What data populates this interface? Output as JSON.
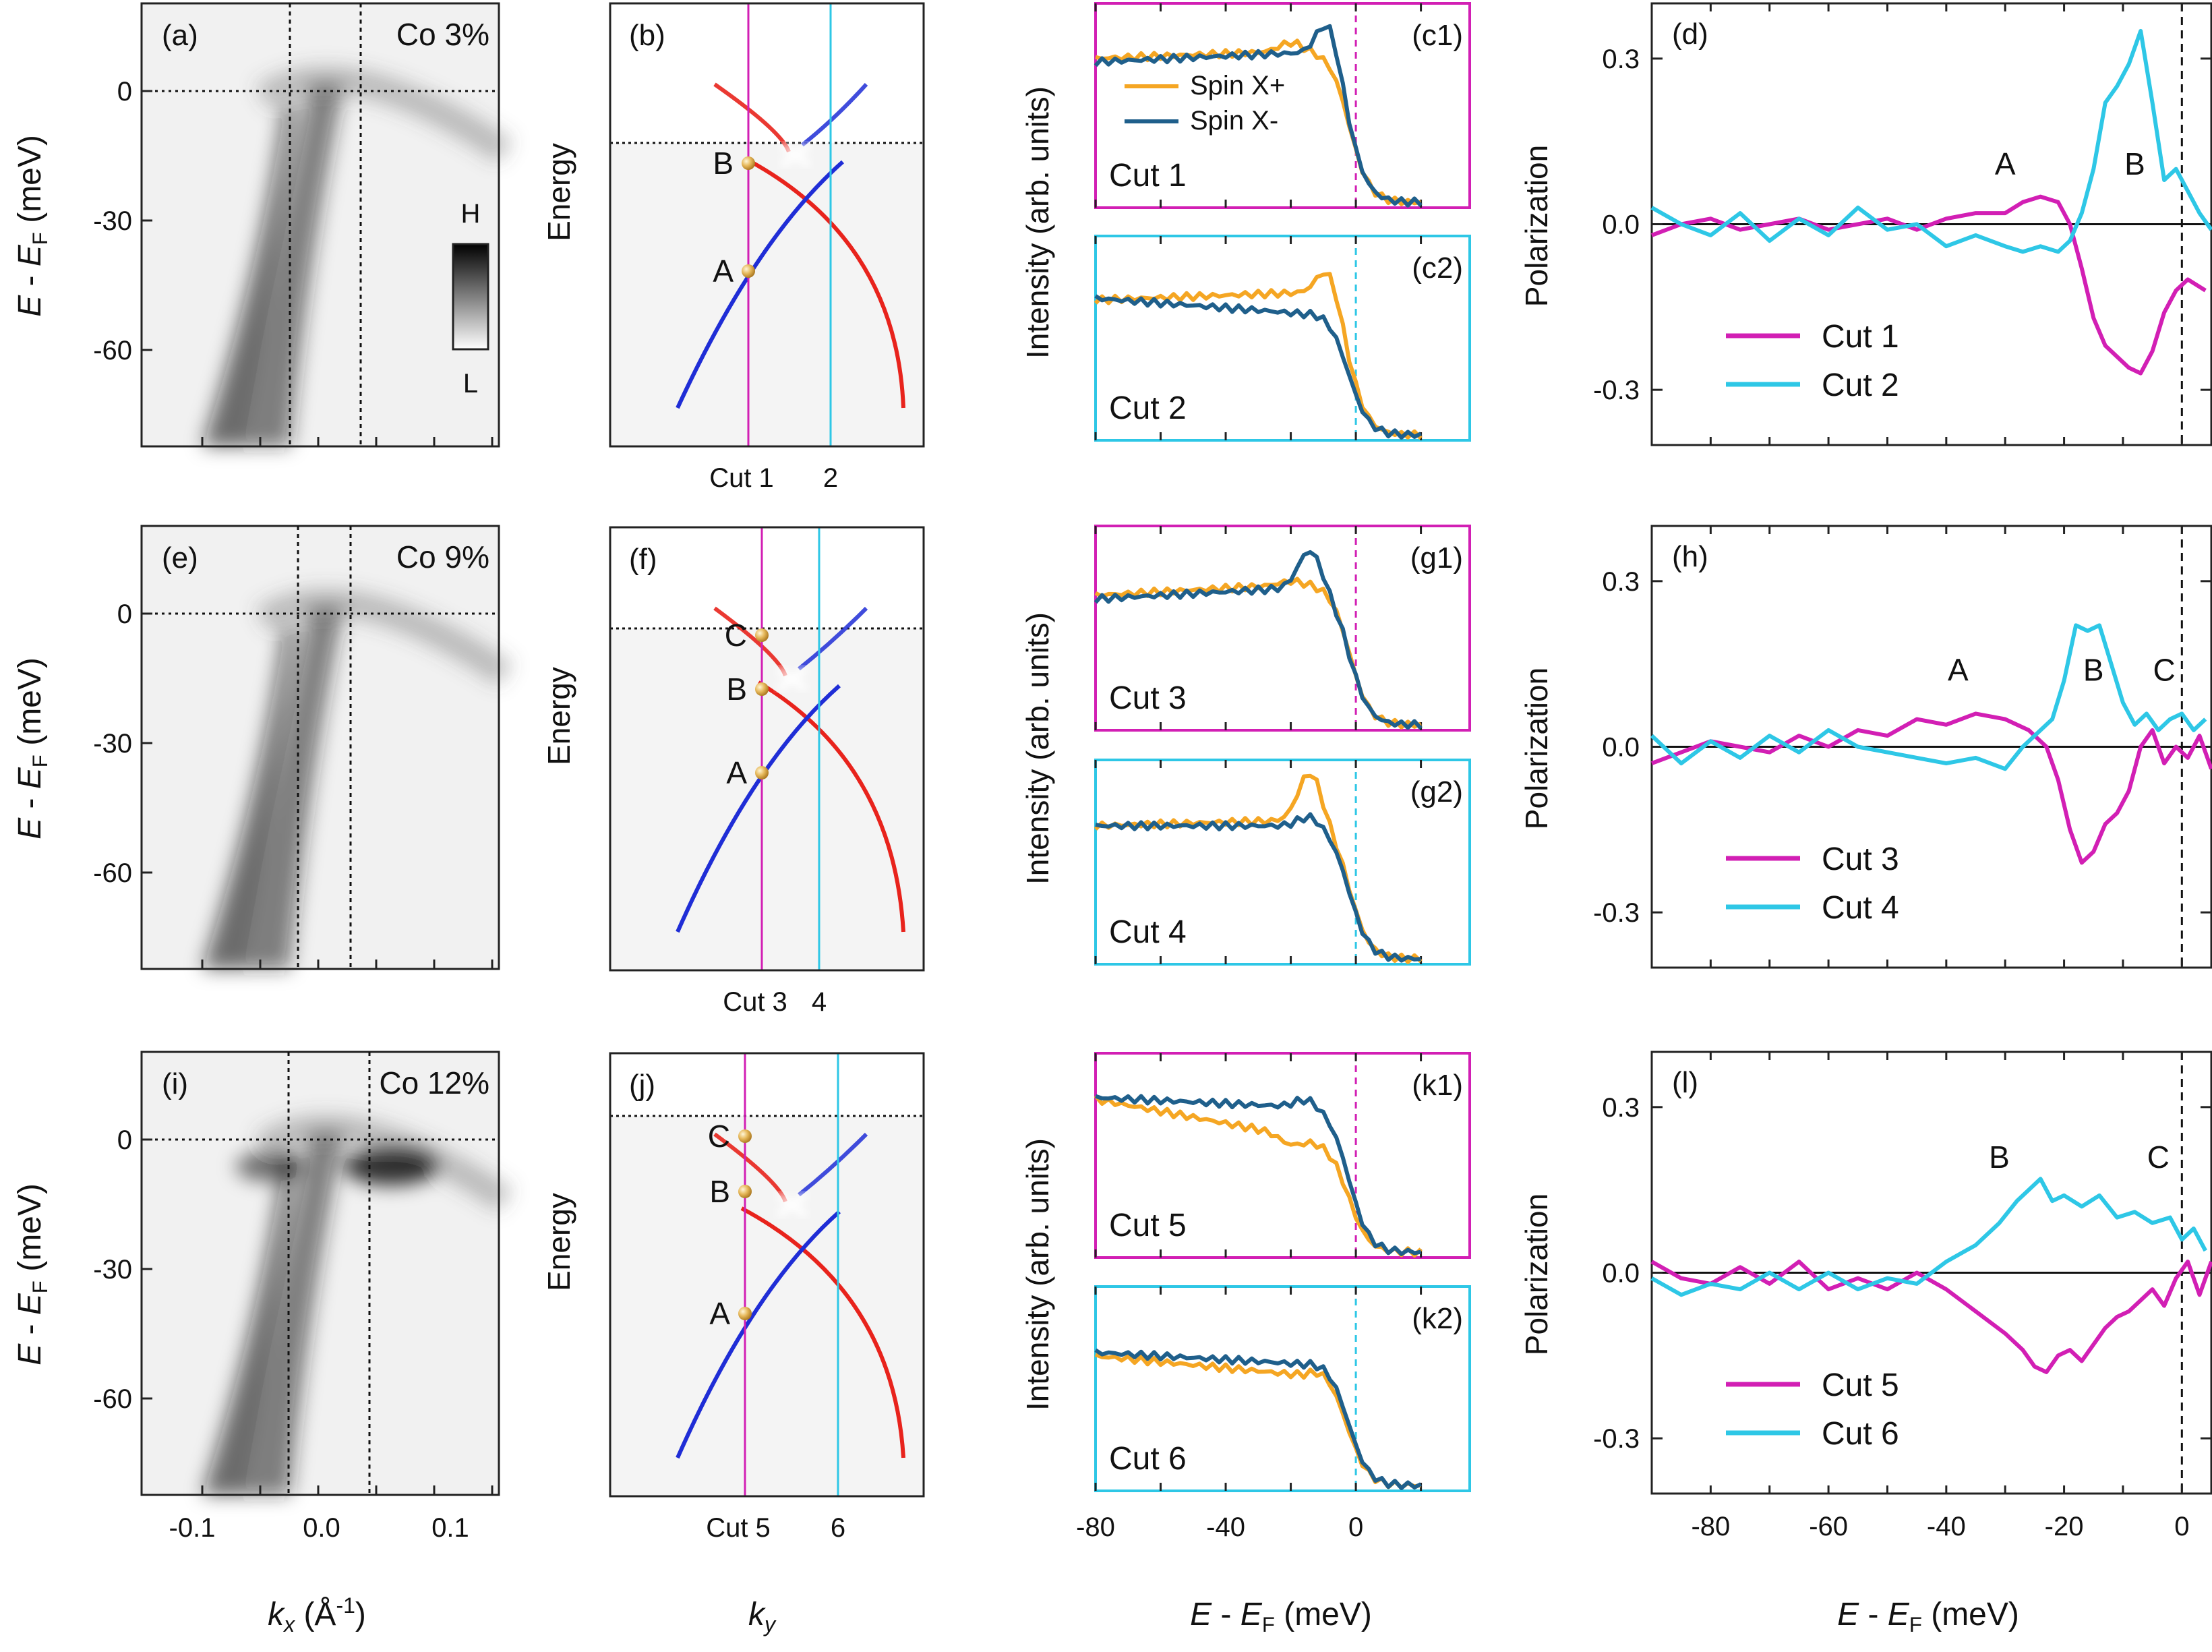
{
  "colors": {
    "magenta": "#D21FB4",
    "cyan": "#2EC7E6",
    "orange": "#F5A623",
    "darkblue": "#1F5F8B",
    "red": "#E8231C",
    "blue": "#1F2DD6",
    "gridgray": "#f4f4f4"
  },
  "chart_data": [
    {
      "type": "heatmap",
      "panel": "(a)",
      "label": "Co 3%",
      "ylabel": "E - E_F (meV)",
      "yticks": [
        "0",
        "-30",
        "-60"
      ],
      "colorbar": {
        "high": "H",
        "low": "L"
      }
    },
    {
      "type": "heatmap",
      "panel": "(e)",
      "label": "Co 9%",
      "ylabel": "E - E_F (meV)",
      "yticks": [
        "0",
        "-30",
        "-60"
      ]
    },
    {
      "type": "heatmap",
      "panel": "(i)",
      "label": "Co 12%",
      "ylabel": "E - E_F (meV)",
      "yticks": [
        "0",
        "-30",
        "-60"
      ],
      "xlabel": "k_x (Å^-1)",
      "xticks": [
        "-0.1",
        "0.0",
        "0.1"
      ]
    },
    {
      "type": "diagram",
      "panel": "(b)",
      "ylabel": "Energy",
      "points": [
        "B",
        "A"
      ],
      "cut_labels": [
        "Cut 1",
        "2"
      ]
    },
    {
      "type": "diagram",
      "panel": "(f)",
      "ylabel": "Energy",
      "points": [
        "C",
        "B",
        "A"
      ],
      "cut_labels": [
        "Cut 3",
        "4"
      ]
    },
    {
      "type": "diagram",
      "panel": "(j)",
      "ylabel": "Energy",
      "points": [
        "C",
        "B",
        "A"
      ],
      "cut_labels": [
        "Cut 5",
        "6"
      ],
      "xlabel": "k_y"
    },
    {
      "type": "line",
      "ylabel": "Intensity (arb. units)",
      "xlabel": "E - E_F (meV)",
      "xticks": [
        "-80",
        "-40",
        "0"
      ],
      "legend": [
        "Spin X+",
        "Spin X-"
      ],
      "panels": [
        {
          "tag": "(c1)",
          "cut": "Cut 1"
        },
        {
          "tag": "(c2)",
          "cut": "Cut 2"
        },
        {
          "tag": "(g1)",
          "cut": "Cut 3"
        },
        {
          "tag": "(g2)",
          "cut": "Cut 4"
        },
        {
          "tag": "(k1)",
          "cut": "Cut 5"
        },
        {
          "tag": "(k2)",
          "cut": "Cut 6"
        }
      ]
    },
    {
      "type": "line",
      "panel": "(d)",
      "ylabel": "Polarization",
      "yticks": [
        "0.3",
        "0.0",
        "-0.3"
      ],
      "ylim": [
        -0.4,
        0.4
      ],
      "xlim": [
        -90,
        5
      ],
      "annotations": [
        {
          "text": "A",
          "x": -30,
          "y": 0.09
        },
        {
          "text": "B",
          "x": -8,
          "y": 0.09
        }
      ],
      "series": [
        {
          "name": "Cut 1",
          "color": "magenta",
          "x": [
            -90,
            -85,
            -80,
            -75,
            -70,
            -65,
            -60,
            -55,
            -50,
            -45,
            -40,
            -35,
            -30,
            -27,
            -24,
            -21,
            -19,
            -17,
            -15,
            -13,
            -11,
            -9,
            -7,
            -5,
            -3,
            -1,
            1,
            4
          ],
          "y": [
            -0.02,
            0.0,
            0.01,
            -0.01,
            0.0,
            0.01,
            -0.01,
            0.0,
            0.01,
            -0.01,
            0.01,
            0.02,
            0.02,
            0.04,
            0.05,
            0.04,
            0.0,
            -0.08,
            -0.17,
            -0.22,
            -0.24,
            -0.26,
            -0.27,
            -0.23,
            -0.16,
            -0.12,
            -0.1,
            -0.12
          ]
        },
        {
          "name": "Cut 2",
          "color": "cyan",
          "x": [
            -90,
            -85,
            -80,
            -75,
            -70,
            -65,
            -60,
            -55,
            -50,
            -45,
            -40,
            -35,
            -30,
            -27,
            -24,
            -21,
            -19,
            -17,
            -15,
            -13,
            -11,
            -9,
            -7,
            -5,
            -3,
            -1,
            1,
            3,
            5
          ],
          "y": [
            0.03,
            0.0,
            -0.02,
            0.02,
            -0.03,
            0.01,
            -0.02,
            0.03,
            -0.01,
            0.0,
            -0.04,
            -0.02,
            -0.04,
            -0.05,
            -0.04,
            -0.05,
            -0.03,
            0.02,
            0.1,
            0.22,
            0.25,
            0.29,
            0.35,
            0.22,
            0.08,
            0.1,
            0.06,
            0.02,
            -0.01
          ]
        }
      ],
      "legend": [
        "Cut 1",
        "Cut 2"
      ]
    },
    {
      "type": "line",
      "panel": "(h)",
      "ylabel": "Polarization",
      "yticks": [
        "0.3",
        "0.0",
        "-0.3"
      ],
      "ylim": [
        -0.4,
        0.4
      ],
      "xlim": [
        -90,
        5
      ],
      "annotations": [
        {
          "text": "A",
          "x": -38,
          "y": 0.12
        },
        {
          "text": "B",
          "x": -15,
          "y": 0.12
        },
        {
          "text": "C",
          "x": -3,
          "y": 0.12
        }
      ],
      "series": [
        {
          "name": "Cut 3",
          "color": "magenta",
          "x": [
            -90,
            -85,
            -80,
            -75,
            -70,
            -65,
            -60,
            -55,
            -50,
            -45,
            -40,
            -35,
            -30,
            -26,
            -23,
            -21,
            -19,
            -17,
            -15,
            -13,
            -11,
            -9,
            -7,
            -5,
            -3,
            -1,
            1,
            3,
            5
          ],
          "y": [
            -0.03,
            -0.01,
            0.01,
            0.0,
            -0.01,
            0.02,
            0.0,
            0.03,
            0.02,
            0.05,
            0.04,
            0.06,
            0.05,
            0.03,
            0.0,
            -0.06,
            -0.15,
            -0.21,
            -0.19,
            -0.14,
            -0.12,
            -0.08,
            0.0,
            0.03,
            -0.03,
            0.0,
            -0.02,
            0.02,
            -0.04
          ]
        },
        {
          "name": "Cut 4",
          "color": "cyan",
          "x": [
            -90,
            -85,
            -80,
            -75,
            -70,
            -65,
            -60,
            -55,
            -50,
            -45,
            -40,
            -35,
            -30,
            -27,
            -25,
            -22,
            -20,
            -18,
            -16,
            -14,
            -12,
            -10,
            -8,
            -6,
            -4,
            -2,
            0,
            2,
            4
          ],
          "y": [
            0.02,
            -0.03,
            0.01,
            -0.02,
            0.02,
            -0.01,
            0.03,
            0.0,
            -0.01,
            -0.02,
            -0.03,
            -0.02,
            -0.04,
            0.0,
            0.02,
            0.05,
            0.12,
            0.22,
            0.21,
            0.22,
            0.15,
            0.08,
            0.04,
            0.06,
            0.03,
            0.05,
            0.06,
            0.03,
            0.05
          ]
        }
      ],
      "legend": [
        "Cut 3",
        "Cut 4"
      ]
    },
    {
      "type": "line",
      "panel": "(l)",
      "ylabel": "Polarization",
      "yticks": [
        "0.3",
        "0.0",
        "-0.3"
      ],
      "ylim": [
        -0.4,
        0.4
      ],
      "xlim": [
        -90,
        5
      ],
      "xlabel": "E - E_F (meV)",
      "xticks": [
        "-80",
        "-60",
        "-40",
        "-20",
        "0"
      ],
      "annotations": [
        {
          "text": "B",
          "x": -31,
          "y": 0.19
        },
        {
          "text": "C",
          "x": -4,
          "y": 0.19
        }
      ],
      "series": [
        {
          "name": "Cut 5",
          "color": "magenta",
          "x": [
            -90,
            -85,
            -80,
            -75,
            -70,
            -65,
            -60,
            -55,
            -50,
            -45,
            -40,
            -35,
            -30,
            -27,
            -25,
            -23,
            -21,
            -19,
            -17,
            -15,
            -13,
            -11,
            -9,
            -7,
            -5,
            -3,
            -1,
            1,
            3,
            5
          ],
          "y": [
            0.02,
            -0.01,
            -0.02,
            0.01,
            -0.02,
            0.02,
            -0.03,
            -0.01,
            -0.03,
            0.0,
            -0.03,
            -0.07,
            -0.11,
            -0.14,
            -0.17,
            -0.18,
            -0.15,
            -0.14,
            -0.16,
            -0.13,
            -0.1,
            -0.08,
            -0.07,
            -0.05,
            -0.03,
            -0.06,
            -0.01,
            0.02,
            -0.04,
            0.02
          ]
        },
        {
          "name": "Cut 6",
          "color": "cyan",
          "x": [
            -90,
            -85,
            -80,
            -75,
            -70,
            -65,
            -60,
            -55,
            -50,
            -45,
            -40,
            -35,
            -31,
            -28,
            -26,
            -24,
            -22,
            -20,
            -17,
            -14,
            -11,
            -8,
            -5,
            -2,
            0,
            2,
            4
          ],
          "y": [
            -0.01,
            -0.04,
            -0.02,
            -0.03,
            0.0,
            -0.03,
            0.0,
            -0.03,
            -0.01,
            -0.02,
            0.02,
            0.05,
            0.09,
            0.13,
            0.15,
            0.17,
            0.13,
            0.14,
            0.12,
            0.14,
            0.1,
            0.11,
            0.09,
            0.1,
            0.06,
            0.08,
            0.04
          ]
        }
      ],
      "legend": [
        "Cut 5",
        "Cut 6"
      ]
    }
  ]
}
